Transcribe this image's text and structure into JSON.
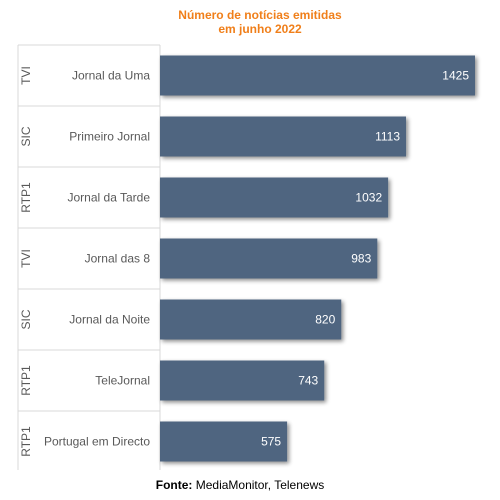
{
  "chart_data": {
    "type": "bar",
    "orientation": "horizontal",
    "title": [
      "Número de notícias emitidas",
      "em junho 2022"
    ],
    "categories": [
      {
        "channel": "TVI",
        "program": "Jornal da Uma"
      },
      {
        "channel": "SIC",
        "program": "Primeiro Jornal"
      },
      {
        "channel": "RTP1",
        "program": "Jornal da Tarde"
      },
      {
        "channel": "TVI",
        "program": "Jornal das 8"
      },
      {
        "channel": "SIC",
        "program": "Jornal da Noite"
      },
      {
        "channel": "RTP1",
        "program": "TeleJornal"
      },
      {
        "channel": "RTP1",
        "program": "Portugal em Directo"
      }
    ],
    "values": [
      1425,
      1113,
      1032,
      983,
      820,
      743,
      575
    ],
    "xlim": [
      0,
      1425
    ],
    "grid": false,
    "bar_color": "#4f6580"
  },
  "footer": {
    "source_label": "Fonte:",
    "source_text": " MediaMonitor, Telenews"
  }
}
